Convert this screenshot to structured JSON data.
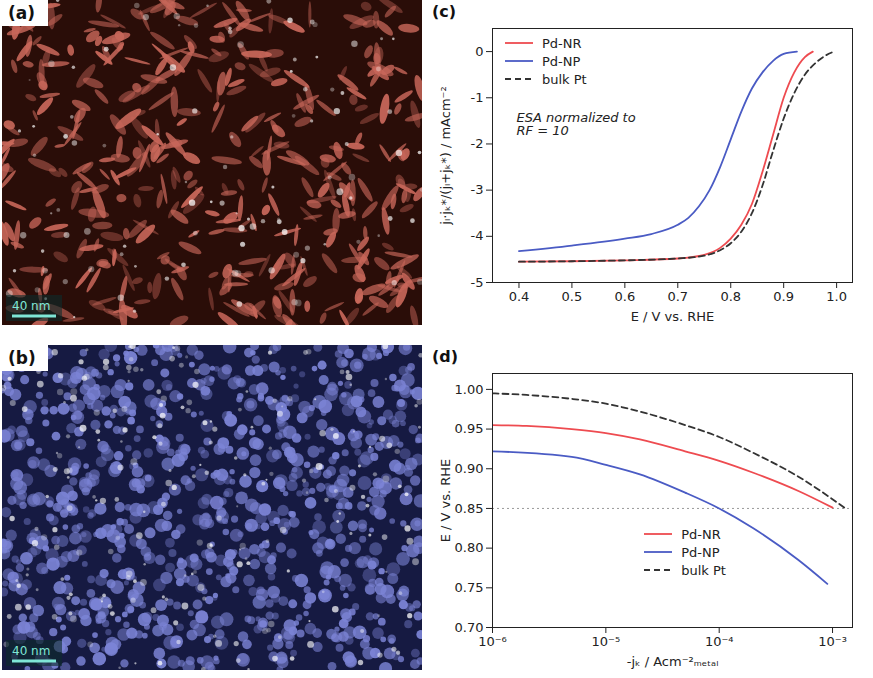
{
  "images": [
    {
      "letter": "(a)",
      "scale_bar": "40 nm",
      "color": "#c8675a"
    },
    {
      "letter": "(b)",
      "scale_bar": "40 nm",
      "color": "#7c84d6"
    }
  ],
  "chart_data": [
    {
      "type": "line",
      "letter": "(c)",
      "xlabel": "E / V vs. RHE",
      "ylabel": "jₗ·jₖ*/(jₗ+jₖ*) / mAcm⁻²",
      "annotation": [
        "ESA normalized to",
        "RF = 10"
      ],
      "xlim": [
        0.35,
        1.03
      ],
      "xticks": [
        0.4,
        0.5,
        0.6,
        0.7,
        0.8,
        0.9,
        {
          "value": 1,
          "label": "1.0"
        }
      ],
      "ylim": [
        -5,
        0.5
      ],
      "yticks": [
        0,
        -1,
        -2,
        -3,
        -4,
        -5
      ],
      "legend": "top-left",
      "series": [
        {
          "name": "Pd-NR",
          "color": "#ee4b50",
          "line_style": "solid",
          "x": [
            0.4,
            0.5,
            0.6,
            0.7,
            0.75,
            0.78,
            0.8,
            0.82,
            0.84,
            0.86,
            0.88,
            0.9,
            0.92,
            0.94,
            0.955
          ],
          "values": [
            -4.55,
            -4.54,
            -4.52,
            -4.48,
            -4.4,
            -4.25,
            -4.05,
            -3.75,
            -3.3,
            -2.6,
            -1.8,
            -1.0,
            -0.45,
            -0.12,
            0
          ]
        },
        {
          "name": "Pd-NP",
          "color": "#4a5bc4",
          "line_style": "solid",
          "x": [
            0.4,
            0.5,
            0.6,
            0.65,
            0.7,
            0.72,
            0.74,
            0.76,
            0.78,
            0.8,
            0.82,
            0.84,
            0.86,
            0.88,
            0.9,
            0.925
          ],
          "values": [
            -4.32,
            -4.2,
            -4.05,
            -3.95,
            -3.75,
            -3.6,
            -3.35,
            -3.0,
            -2.5,
            -1.9,
            -1.3,
            -0.8,
            -0.45,
            -0.2,
            -0.05,
            0
          ]
        },
        {
          "name": "bulk Pt",
          "color": "#333333",
          "line_style": "dashed",
          "x": [
            0.4,
            0.5,
            0.6,
            0.7,
            0.75,
            0.78,
            0.8,
            0.82,
            0.84,
            0.86,
            0.88,
            0.9,
            0.92,
            0.94,
            0.96,
            0.98,
            0.995
          ],
          "values": [
            -4.55,
            -4.54,
            -4.52,
            -4.48,
            -4.42,
            -4.3,
            -4.15,
            -3.9,
            -3.5,
            -2.9,
            -2.15,
            -1.45,
            -0.9,
            -0.5,
            -0.25,
            -0.08,
            0
          ]
        }
      ]
    },
    {
      "type": "line",
      "letter": "(d)",
      "xlabel": "-jₖ / Acm⁻²ₘₑₜₐₗ",
      "ylabel": "E / V vs. RHE",
      "log": "x",
      "xlim": [
        1e-06,
        0.0015
      ],
      "xticks": [
        {
          "value": 1e-06,
          "label": "10⁻⁶"
        },
        {
          "value": 1e-05,
          "label": "10⁻⁵"
        },
        {
          "value": 0.0001,
          "label": "10⁻⁴"
        },
        {
          "value": 0.001,
          "label": "10⁻³"
        }
      ],
      "ylim": [
        0.7,
        1.02
      ],
      "yticks": [
        {
          "value": 0.7,
          "label": "0.70"
        },
        0.75,
        {
          "value": 0.8,
          "label": "0.80"
        },
        0.85,
        {
          "value": 0.9,
          "label": "0.90"
        },
        0.95,
        {
          "value": 1,
          "label": "1.00"
        }
      ],
      "hline": {
        "value": 0.85,
        "color": "#9a9a9a",
        "line_style": "dotted"
      },
      "legend": "bottom",
      "series": [
        {
          "name": "Pd-NR",
          "color": "#ee4b50",
          "line_style": "solid",
          "x": [
            1e-06,
            2e-06,
            5e-06,
            1e-05,
            2e-05,
            5e-05,
            0.0001,
            0.0002,
            0.0005,
            0.001
          ],
          "values": [
            0.955,
            0.954,
            0.95,
            0.945,
            0.937,
            0.922,
            0.91,
            0.895,
            0.872,
            0.851
          ]
        },
        {
          "name": "Pd-NP",
          "color": "#4a5bc4",
          "line_style": "solid",
          "x": [
            1e-06,
            5e-06,
            1e-05,
            2e-05,
            5e-05,
            0.0001,
            0.0002,
            0.0005,
            0.0009
          ],
          "values": [
            0.922,
            0.915,
            0.905,
            0.893,
            0.87,
            0.85,
            0.825,
            0.785,
            0.755
          ]
        },
        {
          "name": "bulk Pt",
          "color": "#333333",
          "line_style": "dashed",
          "x": [
            1e-06,
            2e-06,
            5e-06,
            1e-05,
            2e-05,
            5e-05,
            0.0001,
            0.0002,
            0.0005,
            0.0013
          ],
          "values": [
            0.995,
            0.993,
            0.988,
            0.982,
            0.972,
            0.955,
            0.94,
            0.92,
            0.89,
            0.85
          ]
        }
      ]
    }
  ]
}
